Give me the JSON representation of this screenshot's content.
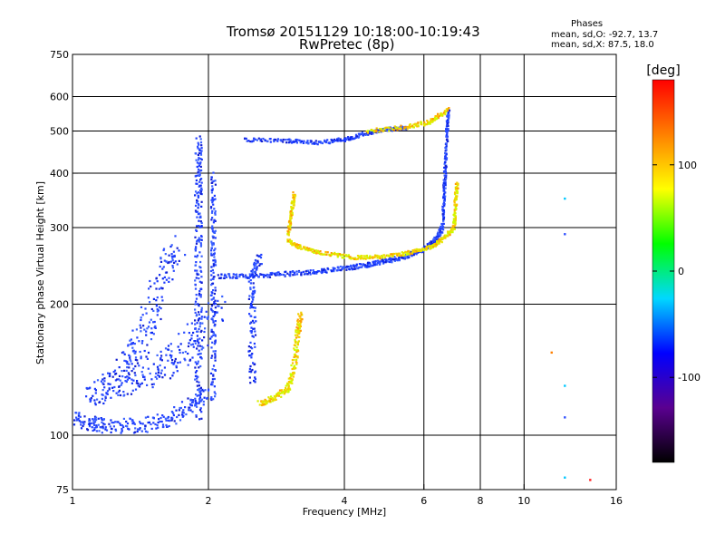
{
  "chart_data": {
    "type": "scatter",
    "title": "Tromsø 20151129 10:18:00-10:19:43",
    "subtitle": "RwPretec (8p)",
    "xlabel": "Frequency [MHz]",
    "ylabel": "Stationary phase Virtual Height [km]",
    "x_scale": "log",
    "y_scale": "log",
    "xlim": [
      1,
      16
    ],
    "ylim": [
      75,
      750
    ],
    "x_ticks": [
      "1",
      "2",
      "4",
      "6",
      "8",
      "10",
      "16"
    ],
    "y_ticks": [
      "75",
      "100",
      "200",
      "300",
      "400",
      "500",
      "600",
      "750"
    ],
    "grid": true,
    "legend_title": "Phases",
    "stats_o": "mean, sd,O: -92.7, 13.7",
    "stats_x": "mean, sd,X:  87.5, 18.0",
    "colorbar": {
      "label": "[deg]",
      "range": [
        -180,
        180
      ],
      "ticks": [
        "100",
        "0",
        "-100"
      ],
      "tick_values": [
        100,
        0,
        -100
      ],
      "colors": [
        "#000000",
        "#5a0090",
        "#0000ff",
        "#00d8ff",
        "#00ff00",
        "#ffff00",
        "#ff8000",
        "#ff0000"
      ]
    },
    "series": [
      {
        "mode": "O",
        "color": "#1e3cff",
        "traces": [
          {
            "points": [
              [
                1.0,
                110
              ],
              [
                1.1,
                106
              ],
              [
                1.2,
                105
              ],
              [
                1.4,
                105
              ],
              [
                1.6,
                108
              ],
              [
                1.8,
                115
              ],
              [
                2.0,
                125
              ]
            ],
            "jitter": 0.05
          },
          {
            "points": [
              [
                1.1,
                126
              ],
              [
                1.2,
                130
              ],
              [
                1.3,
                132
              ],
              [
                1.5,
                140
              ],
              [
                1.7,
                150
              ],
              [
                1.9,
                170
              ],
              [
                2.1,
                200
              ]
            ],
            "jitter": 0.09
          },
          {
            "points": [
              [
                1.3,
                145
              ],
              [
                1.4,
                160
              ],
              [
                1.5,
                190
              ],
              [
                1.6,
                240
              ],
              [
                1.7,
                270
              ]
            ],
            "jitter": 0.08
          },
          {
            "points": [
              [
                1.9,
                110
              ],
              [
                1.9,
                150
              ],
              [
                1.9,
                200
              ],
              [
                1.9,
                260
              ],
              [
                1.9,
                330
              ],
              [
                1.9,
                400
              ],
              [
                1.9,
                480
              ]
            ],
            "jitter": 0.03
          },
          {
            "points": [
              [
                2.05,
                120
              ],
              [
                2.05,
                180
              ],
              [
                2.05,
                240
              ],
              [
                2.05,
                300
              ],
              [
                2.05,
                400
              ]
            ],
            "jitter": 0.02
          },
          {
            "points": [
              [
                2.5,
                130
              ],
              [
                2.5,
                180
              ],
              [
                2.5,
                230
              ],
              [
                2.6,
                260
              ]
            ],
            "jitter": 0.03
          },
          {
            "points": [
              [
                2.1,
                232
              ],
              [
                2.5,
                232
              ],
              [
                3.0,
                235
              ],
              [
                3.5,
                238
              ],
              [
                4.0,
                242
              ],
              [
                4.5,
                246
              ],
              [
                5.0,
                252
              ],
              [
                5.5,
                258
              ],
              [
                6.0,
                268
              ],
              [
                6.4,
                282
              ],
              [
                6.6,
                300
              ]
            ],
            "jitter": 0.015
          },
          {
            "points": [
              [
                6.6,
                300
              ],
              [
                6.65,
                360
              ],
              [
                6.7,
                420
              ],
              [
                6.75,
                500
              ],
              [
                6.8,
                560
              ]
            ],
            "jitter": 0.01
          },
          {
            "points": [
              [
                2.4,
                478
              ],
              [
                3.0,
                475
              ],
              [
                3.5,
                470
              ],
              [
                4.0,
                478
              ],
              [
                4.5,
                495
              ],
              [
                5.0,
                505
              ],
              [
                5.5,
                508
              ]
            ],
            "jitter": 0.012
          }
        ]
      },
      {
        "mode": "X",
        "color": "#e8e800",
        "traces": [
          {
            "points": [
              [
                3.0,
                280
              ],
              [
                3.2,
                270
              ],
              [
                3.6,
                262
              ],
              [
                4.2,
                256
              ],
              [
                4.8,
                257
              ],
              [
                5.5,
                262
              ],
              [
                6.2,
                270
              ],
              [
                6.6,
                282
              ],
              [
                7.0,
                300
              ]
            ],
            "jitter": 0.012
          },
          {
            "points": [
              [
                7.0,
                300
              ],
              [
                7.05,
                340
              ],
              [
                7.1,
                380
              ]
            ],
            "jitter": 0.012
          },
          {
            "points": [
              [
                2.6,
                118
              ],
              [
                2.8,
                122
              ],
              [
                3.0,
                128
              ],
              [
                3.1,
                145
              ],
              [
                3.15,
                170
              ],
              [
                3.2,
                190
              ]
            ],
            "jitter": 0.02
          },
          {
            "points": [
              [
                3.0,
                290
              ],
              [
                3.05,
                320
              ],
              [
                3.1,
                360
              ]
            ],
            "jitter": 0.012
          },
          {
            "points": [
              [
                4.5,
                500
              ],
              [
                5.5,
                510
              ],
              [
                6.2,
                525
              ],
              [
                6.8,
                560
              ]
            ],
            "jitter": 0.015
          }
        ]
      }
    ],
    "scattered_points": [
      {
        "x": 12.3,
        "y": 80,
        "color": "#00c8ff"
      },
      {
        "x": 14.0,
        "y": 79,
        "color": "#ff2020"
      },
      {
        "x": 12.3,
        "y": 130,
        "color": "#00c8ff"
      },
      {
        "x": 12.3,
        "y": 350,
        "color": "#00c8ff"
      },
      {
        "x": 12.3,
        "y": 290,
        "color": "#3050ff"
      },
      {
        "x": 11.5,
        "y": 155,
        "color": "#ff8000"
      },
      {
        "x": 12.3,
        "y": 110,
        "color": "#3050ff"
      }
    ]
  }
}
